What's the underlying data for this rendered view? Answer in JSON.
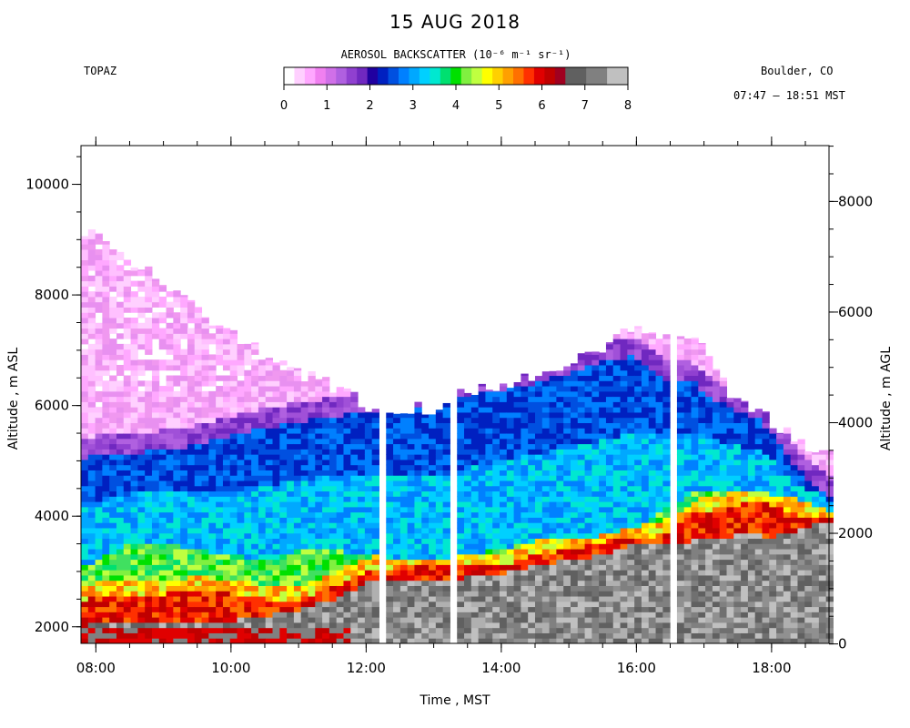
{
  "header": {
    "title": "15 AUG 2018",
    "site": "TOPAZ",
    "location": "Boulder, CO",
    "time_range": "07:47 – 18:51 MST"
  },
  "colorbar": {
    "title": "AEROSOL BACKSCATTER (10⁻⁶ m⁻¹ sr⁻¹)",
    "ticks": [
      "0",
      "1",
      "2",
      "3",
      "4",
      "5",
      "6",
      "7",
      "8"
    ],
    "colors": [
      "#ffffff",
      "#ffd0ff",
      "#ffa8ff",
      "#f080f0",
      "#d070e8",
      "#b060e0",
      "#9040d0",
      "#7028c0",
      "#2000a0",
      "#0020c0",
      "#0050e0",
      "#0080ff",
      "#00a8ff",
      "#00d0ff",
      "#00e8d0",
      "#00e070",
      "#00e000",
      "#80f040",
      "#c0ff40",
      "#ffff00",
      "#ffd000",
      "#ffa000",
      "#ff7000",
      "#ff3000",
      "#e00000",
      "#c00000",
      "#a00020",
      "#606060",
      "#606060",
      "#808080",
      "#808080",
      "#c0c0c0",
      "#c0c0c0"
    ]
  },
  "chart_data": {
    "type": "heatmap",
    "title": "15 AUG 2018",
    "xlabel": "Time , MST",
    "ylabel_left": "Altitude , m ASL",
    "ylabel_right": "Altitude , m AGL",
    "x_ticks": [
      "08:00",
      "10:00",
      "12:00",
      "14:00",
      "16:00",
      "18:00"
    ],
    "x_range_hours": [
      7.78,
      18.85
    ],
    "y_range_asl": [
      1700,
      10700
    ],
    "y_ticks_left": [
      2000,
      4000,
      6000,
      8000,
      10000
    ],
    "y_ticks_right": [
      0,
      2000,
      4000,
      6000,
      8000
    ],
    "agl_offset_m": 1690,
    "colorbar_range": [
      0,
      8
    ],
    "colorbar_units": "10^-6 m^-1 sr^-1",
    "no_data_gaps_hours": [
      [
        12.2,
        12.3
      ],
      [
        13.25,
        13.35
      ],
      [
        16.45,
        16.6
      ]
    ],
    "profiles": {
      "time": [
        7.8,
        8.0,
        8.5,
        9.0,
        9.5,
        10.0,
        10.5,
        11.0,
        11.5,
        12.0,
        12.5,
        13.0,
        13.5,
        14.0,
        14.5,
        15.0,
        15.5,
        16.0,
        16.5,
        16.8,
        17.0,
        17.5,
        17.8,
        18.0,
        18.5,
        18.85
      ],
      "aerosol_top_m_asl": [
        9000,
        9150,
        8650,
        8250,
        7750,
        7300,
        6900,
        6600,
        6350,
        6000,
        5950,
        5950,
        6250,
        6350,
        6500,
        6750,
        7050,
        7500,
        7200,
        7300,
        7050,
        6000,
        5900,
        5700,
        5300,
        5100
      ],
      "violet_layer_base_m_asl": [
        5050,
        5100,
        5150,
        5200,
        5300,
        5450,
        5600,
        5700,
        5800,
        5900,
        5950,
        5950,
        6200,
        6300,
        6400,
        6600,
        6800,
        6900,
        6400,
        6500,
        6200,
        5900,
        5800,
        5500,
        4700,
        4400
      ],
      "blue_layer_base_m_asl": [
        3100,
        3200,
        3500,
        3500,
        3400,
        3300,
        3200,
        3400,
        3400,
        3300,
        3200,
        3200,
        3300,
        3400,
        3550,
        3600,
        3650,
        3800,
        4200,
        4400,
        4500,
        4500,
        4500,
        4400,
        4300,
        4100
      ],
      "yellow_layer_base_m_asl": [
        2450,
        2550,
        2600,
        2600,
        2650,
        2600,
        2500,
        2500,
        2700,
        3000,
        3100,
        3100,
        3100,
        3100,
        3300,
        3400,
        3550,
        3600,
        3700,
        4000,
        4100,
        4200,
        4300,
        4200,
        4000,
        3950
      ],
      "red_layer_base_m_asl": [
        2000,
        2100,
        2100,
        2100,
        2100,
        2100,
        2200,
        2300,
        2500,
        2800,
        2800,
        2800,
        2900,
        2950,
        3100,
        3200,
        3300,
        3500,
        3550,
        3550,
        3600,
        3650,
        3700,
        3600,
        3800,
        3900
      ]
    }
  }
}
